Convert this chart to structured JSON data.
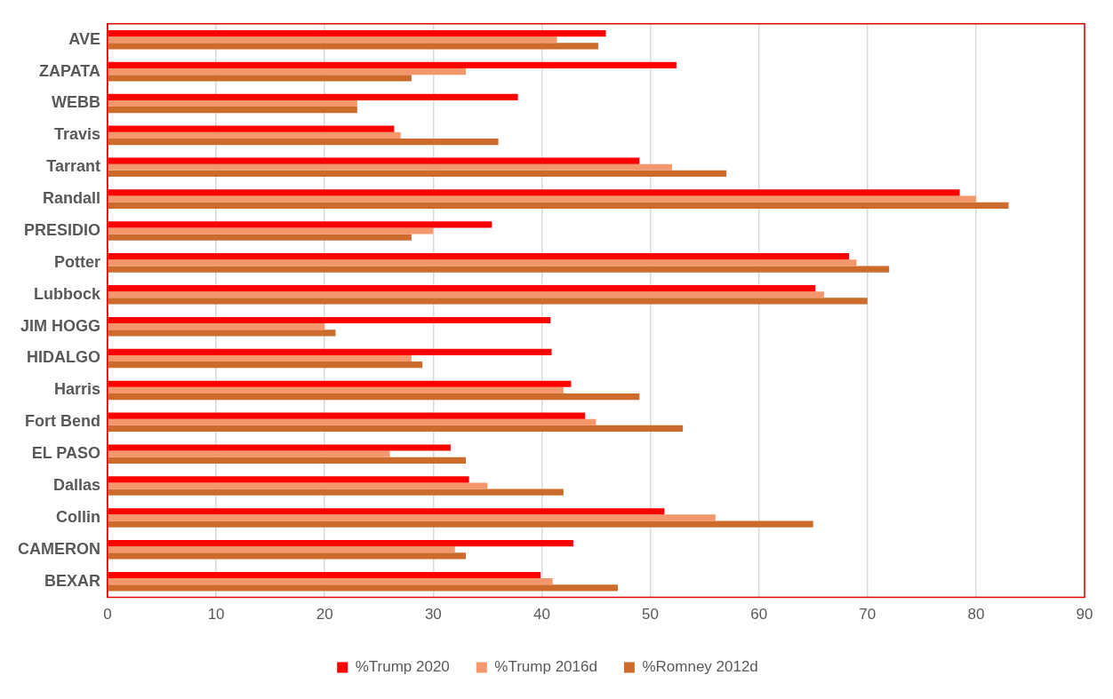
{
  "chart_data": {
    "type": "bar",
    "orientation": "horizontal",
    "categories": [
      "AVE",
      "ZAPATA",
      "WEBB",
      "Travis",
      "Tarrant",
      "Randall",
      "PRESIDIO",
      "Potter",
      "Lubbock",
      "JIM HOGG",
      "HIDALGO",
      "Harris",
      "Fort Bend",
      "EL PASO",
      "Dallas",
      "Collin",
      "CAMERON",
      "BEXAR"
    ],
    "series": [
      {
        "name": "%Trump 2020",
        "color": "#ff0000",
        "values": [
          45.9,
          52.4,
          37.8,
          26.4,
          49,
          78.5,
          35.4,
          68.3,
          65.2,
          40.8,
          40.9,
          42.7,
          44,
          31.6,
          33.3,
          51.3,
          42.9,
          39.9
        ]
      },
      {
        "name": "%Trump 2016d",
        "color": "#f4976c",
        "values": [
          41.4,
          33,
          23,
          27,
          52,
          80,
          30,
          69,
          66,
          20,
          28,
          42,
          45,
          26,
          35,
          56,
          32,
          41
        ]
      },
      {
        "name": "%Romney 2012d",
        "color": "#cc6b2c",
        "values": [
          45.2,
          28,
          23,
          36,
          57,
          83,
          28,
          72,
          70,
          21,
          29,
          49,
          53,
          33,
          42,
          65,
          33,
          47
        ]
      }
    ],
    "xlim": [
      0,
      90
    ],
    "xticks": [
      0,
      10,
      20,
      30,
      40,
      50,
      60,
      70,
      80,
      90
    ],
    "grid": "x",
    "legend": "bottom"
  }
}
